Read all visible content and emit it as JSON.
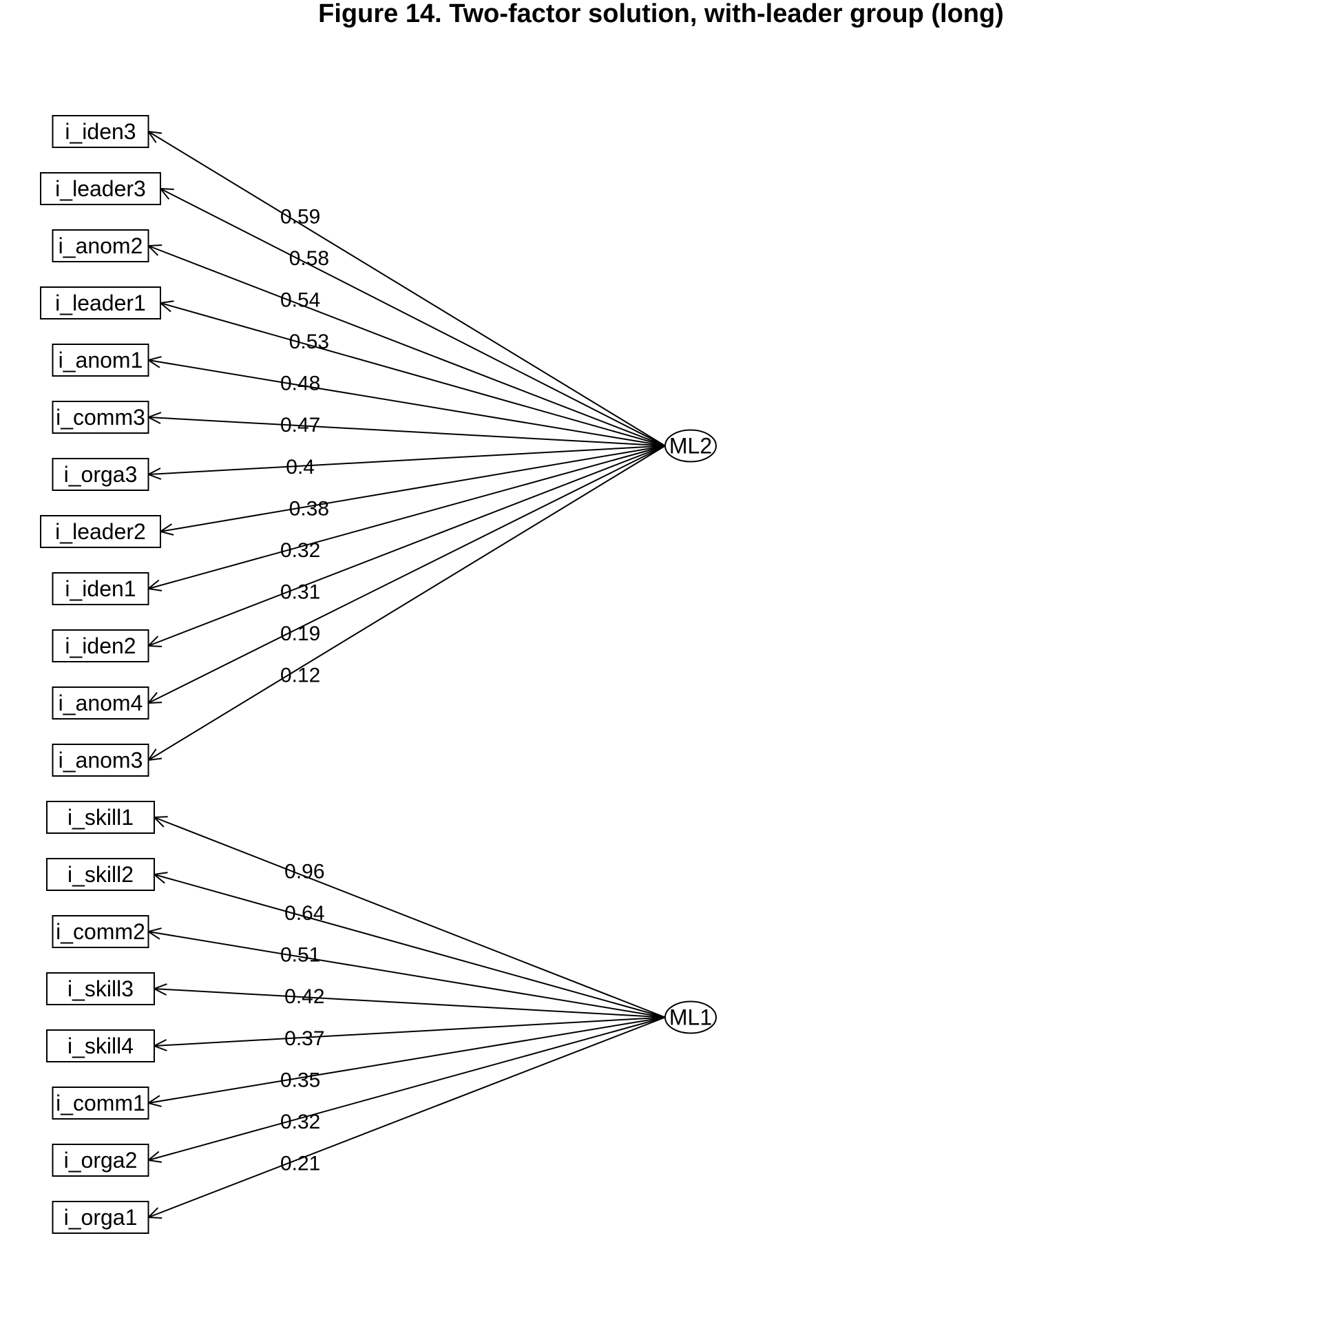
{
  "title": "Figure 14. Two-factor solution, with-leader group (long)",
  "factors": [
    {
      "id": "ML2",
      "label": "ML2",
      "loadings": [
        {
          "variable": "i_iden3",
          "value": "0.59"
        },
        {
          "variable": "i_leader3",
          "value": "0.58"
        },
        {
          "variable": "i_anom2",
          "value": "0.54"
        },
        {
          "variable": "i_leader1",
          "value": "0.53"
        },
        {
          "variable": "i_anom1",
          "value": "0.48"
        },
        {
          "variable": "i_comm3",
          "value": "0.47"
        },
        {
          "variable": "i_orga3",
          "value": "0.4"
        },
        {
          "variable": "i_leader2",
          "value": "0.38"
        },
        {
          "variable": "i_iden1",
          "value": "0.32"
        },
        {
          "variable": "i_iden2",
          "value": "0.31"
        },
        {
          "variable": "i_anom4",
          "value": "0.19"
        },
        {
          "variable": "i_anom3",
          "value": "0.12"
        }
      ]
    },
    {
      "id": "ML1",
      "label": "ML1",
      "loadings": [
        {
          "variable": "i_skill1",
          "value": "0.96"
        },
        {
          "variable": "i_skill2",
          "value": "0.64"
        },
        {
          "variable": "i_comm2",
          "value": "0.51"
        },
        {
          "variable": "i_skill3",
          "value": "0.42"
        },
        {
          "variable": "i_skill4",
          "value": "0.37"
        },
        {
          "variable": "i_comm1",
          "value": "0.35"
        },
        {
          "variable": "i_orga2",
          "value": "0.32"
        },
        {
          "variable": "i_orga1",
          "value": "0.21"
        }
      ]
    }
  ]
}
